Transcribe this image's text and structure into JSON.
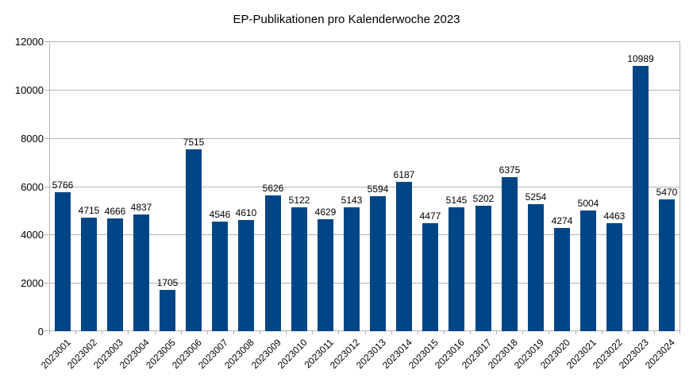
{
  "title": "EP-Publikationen pro Kalenderwoche 2023",
  "colors": {
    "bar": "#004586",
    "grid": "#b3b3b3",
    "axis": "#b3b3b3",
    "text": "#000000",
    "background": "#ffffff"
  },
  "chart_data": {
    "type": "bar",
    "title": "EP-Publikationen pro Kalenderwoche 2023",
    "categories": [
      "2023001",
      "2023002",
      "2023003",
      "2023004",
      "2023005",
      "2023006",
      "2023007",
      "2023008",
      "2023009",
      "2023010",
      "2023011",
      "2023012",
      "2023013",
      "2023014",
      "2023015",
      "2023016",
      "2023017",
      "2023018",
      "2023019",
      "2023020",
      "2023021",
      "2023022",
      "2023023",
      "2023024"
    ],
    "values": [
      5766,
      4715,
      4666,
      4837,
      1705,
      7515,
      4546,
      4610,
      5626,
      5122,
      4629,
      5143,
      5594,
      6187,
      4477,
      5145,
      5202,
      6375,
      5254,
      4274,
      5004,
      4463,
      10989,
      5470
    ],
    "data_labels": [
      5766,
      4715,
      4666,
      4837,
      1705,
      7515,
      4546,
      4610,
      5626,
      5122,
      4629,
      5143,
      5594,
      6187,
      4477,
      5145,
      5202,
      6375,
      5254,
      4274,
      5004,
      4463,
      10989,
      5470
    ],
    "xlabel": "",
    "ylabel": "",
    "ylim": [
      0,
      12000
    ],
    "yticks": [
      0,
      2000,
      4000,
      6000,
      8000,
      10000,
      12000
    ],
    "grid": "horizontal",
    "legend": "none",
    "x_label_rotation_deg": -45,
    "bar_color": "#004586",
    "series_name": "EP-Publikationen"
  }
}
